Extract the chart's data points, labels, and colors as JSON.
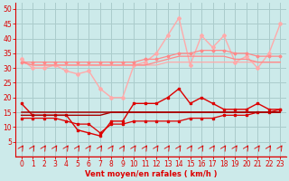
{
  "x": [
    0,
    1,
    2,
    3,
    4,
    5,
    6,
    7,
    8,
    9,
    10,
    11,
    12,
    13,
    14,
    15,
    16,
    17,
    18,
    19,
    20,
    21,
    22,
    23
  ],
  "line_rafales_spiky": [
    33,
    30,
    30,
    31,
    29,
    28,
    29,
    23,
    20,
    20,
    31,
    32,
    35,
    41,
    47,
    31,
    41,
    37,
    41,
    32,
    34,
    30,
    35,
    45
  ],
  "line_pink_trend1": [
    32,
    31,
    31,
    31,
    31,
    31,
    31,
    31,
    31,
    31,
    31,
    31,
    31,
    32,
    32,
    32,
    32,
    32,
    32,
    32,
    32,
    32,
    32,
    32
  ],
  "line_pink_trend2": [
    32,
    31,
    31,
    31,
    31,
    31,
    31,
    31,
    31,
    31,
    31,
    31,
    32,
    33,
    34,
    34,
    34,
    34,
    34,
    33,
    33,
    32,
    32,
    32
  ],
  "line_pink_trend3": [
    32,
    32,
    32,
    32,
    32,
    32,
    32,
    32,
    32,
    32,
    32,
    33,
    33,
    34,
    35,
    35,
    36,
    36,
    36,
    35,
    35,
    34,
    34,
    34
  ],
  "line_red_gust": [
    18,
    14,
    14,
    14,
    14,
    9,
    8,
    7,
    12,
    12,
    18,
    18,
    18,
    20,
    23,
    18,
    20,
    18,
    16,
    16,
    16,
    18,
    16,
    16
  ],
  "line_red_mean": [
    13,
    13,
    13,
    13,
    12,
    11,
    11,
    8,
    11,
    11,
    12,
    12,
    12,
    12,
    12,
    13,
    13,
    13,
    14,
    14,
    14,
    15,
    15,
    16
  ],
  "line_red_flat1": [
    15,
    15,
    15,
    15,
    15,
    15,
    15,
    15,
    15,
    15,
    15,
    15,
    15,
    15,
    15,
    15,
    15,
    15,
    15,
    15,
    15,
    15,
    15,
    15
  ],
  "line_red_flat2": [
    14,
    14,
    14,
    14,
    14,
    14,
    14,
    14,
    15,
    15,
    15,
    15,
    15,
    15,
    15,
    15,
    15,
    15,
    15,
    15,
    15,
    15,
    15,
    15
  ],
  "bg_color": "#cceaea",
  "grid_color": "#aacccc",
  "color_light_pink": "#ffaaaa",
  "color_pink": "#ff8888",
  "color_red": "#dd0000",
  "color_dark_red": "#aa0000",
  "xlabel": "Vent moyen/en rafales ( km/h )",
  "ylim": [
    0,
    52
  ],
  "xlim": [
    -0.5,
    23.5
  ],
  "yticks": [
    5,
    10,
    15,
    20,
    25,
    30,
    35,
    40,
    45,
    50
  ],
  "xticks": [
    0,
    1,
    2,
    3,
    4,
    5,
    6,
    7,
    8,
    9,
    10,
    11,
    12,
    13,
    14,
    15,
    16,
    17,
    18,
    19,
    20,
    21,
    22,
    23
  ]
}
